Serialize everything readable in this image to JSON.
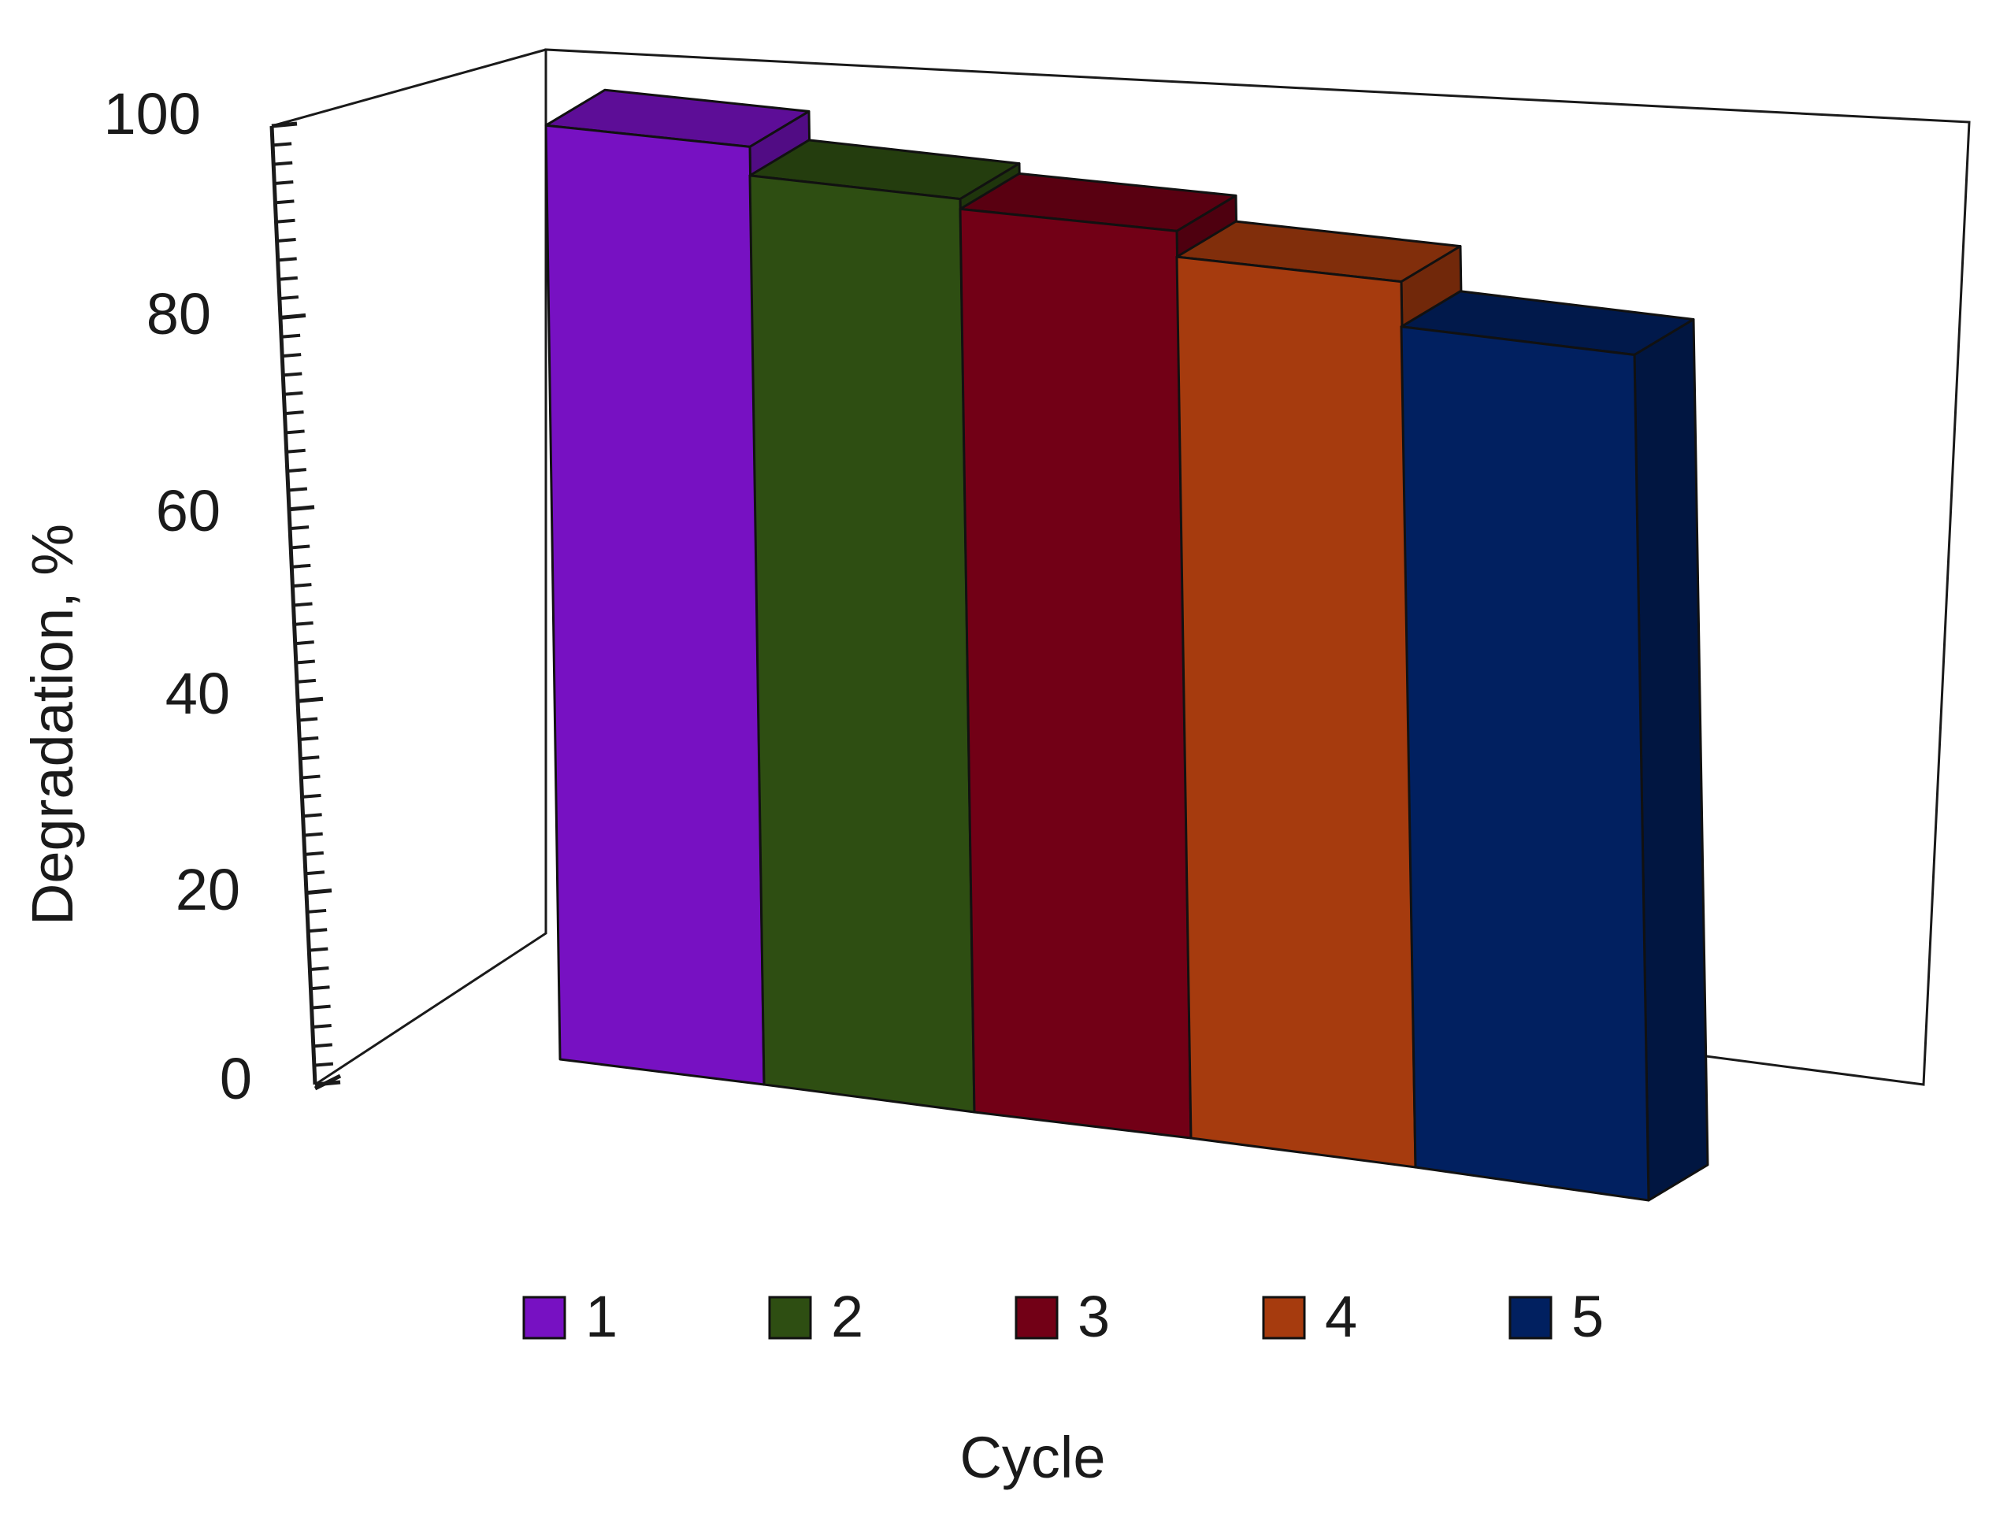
{
  "chart_data": {
    "type": "bar",
    "title": "",
    "xlabel": "Cycle",
    "ylabel": "Degradation, %",
    "ylim": [
      0,
      100
    ],
    "y_ticks": [
      "0",
      "20",
      "40",
      "60",
      "80",
      "100"
    ],
    "three_d": true,
    "grid": false,
    "legend_position": "bottom",
    "categories": [
      "1",
      "2",
      "3",
      "4",
      "5"
    ],
    "values": [
      98,
      93,
      90,
      86,
      80
    ],
    "series": [
      {
        "name": "1",
        "value": 98,
        "color": "#7711c2"
      },
      {
        "name": "2",
        "value": 93,
        "color": "#2e4e12"
      },
      {
        "name": "3",
        "value": 90,
        "color": "#720016"
      },
      {
        "name": "4",
        "value": 86,
        "color": "#a63b0e"
      },
      {
        "name": "5",
        "value": 80,
        "color": "#012060"
      }
    ]
  }
}
